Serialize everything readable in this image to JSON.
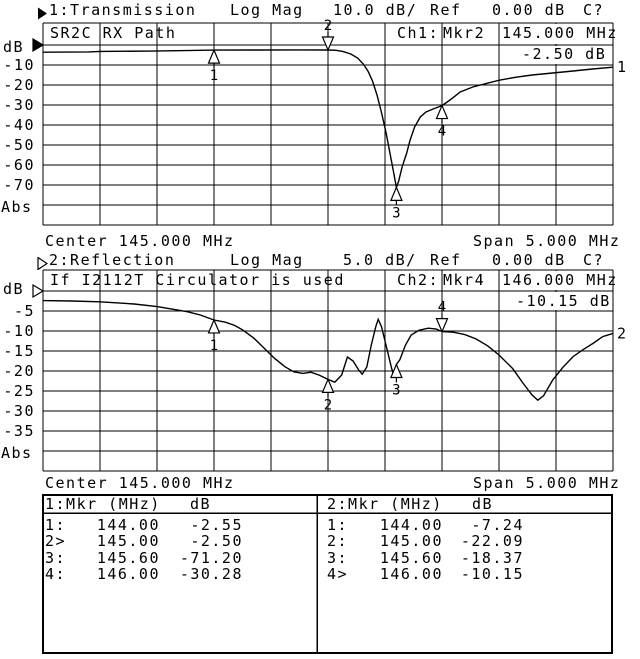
{
  "header1": {
    "trace": "1:Transmission",
    "format": "Log Mag",
    "scale": "10.0 dB/",
    "ref_label": "Ref",
    "ref_value": "0.00 dB",
    "cal": "C?"
  },
  "header2": {
    "trace": "2:Reflection",
    "format": "Log Mag",
    "scale": "5.0 dB/",
    "ref_label": "Ref",
    "ref_value": "0.00 dB",
    "cal": "C?"
  },
  "footer1": {
    "center": "Center 145.000 MHz",
    "span": "Span 5.000 MHz"
  },
  "footer2": {
    "center": "Center 145.000 MHz",
    "span": "Span 5.000 MHz"
  },
  "chart_data": [
    {
      "type": "line",
      "title": "1:Transmission",
      "annotation": "SR2C RX Path",
      "readout": {
        "channel": "Ch1:",
        "marker": "Mkr2",
        "freq": "145.000 MHz",
        "value": "-2.50 dB"
      },
      "ylabel": "dB",
      "abs_label": "Abs",
      "y_ticks": [
        "-10",
        "-20",
        "-30",
        "-40",
        "-50",
        "-60",
        "-70"
      ],
      "y_per_div": 10,
      "ylim": [
        -90,
        0
      ],
      "x_center_mhz": 145.0,
      "x_span_mhz": 5.0,
      "xlim": [
        142.5,
        147.5
      ],
      "grid": true,
      "trace_label": "1",
      "markers": [
        {
          "n": "1",
          "mhz": 144.0,
          "db": -2.55,
          "dir": "up"
        },
        {
          "n": "2",
          "mhz": 145.0,
          "db": -2.5,
          "dir": "down"
        },
        {
          "n": "3",
          "mhz": 145.6,
          "db": -71.2,
          "dir": "up"
        },
        {
          "n": "4",
          "mhz": 146.0,
          "db": -30.28,
          "dir": "up"
        }
      ],
      "points": [
        [
          142.5,
          -3.6
        ],
        [
          142.9,
          -3.45
        ],
        [
          143.0,
          -3.2
        ],
        [
          143.45,
          -3.05
        ],
        [
          143.75,
          -2.8
        ],
        [
          144.0,
          -2.55
        ],
        [
          144.35,
          -2.5
        ],
        [
          144.75,
          -2.45
        ],
        [
          145.0,
          -2.5
        ],
        [
          145.07,
          -2.65
        ],
        [
          145.13,
          -3.2
        ],
        [
          145.2,
          -4.5
        ],
        [
          145.26,
          -6.5
        ],
        [
          145.31,
          -9.5
        ],
        [
          145.35,
          -13
        ],
        [
          145.39,
          -18
        ],
        [
          145.43,
          -25
        ],
        [
          145.47,
          -34
        ],
        [
          145.51,
          -44
        ],
        [
          145.55,
          -56
        ],
        [
          145.58,
          -65
        ],
        [
          145.6,
          -71.2
        ],
        [
          145.62,
          -68
        ],
        [
          145.65,
          -61
        ],
        [
          145.69,
          -54
        ],
        [
          145.72,
          -47.5
        ],
        [
          145.76,
          -41
        ],
        [
          145.81,
          -36
        ],
        [
          145.86,
          -33.5
        ],
        [
          145.93,
          -31.8
        ],
        [
          146.0,
          -30.28
        ],
        [
          146.07,
          -27.5
        ],
        [
          146.16,
          -23.5
        ],
        [
          146.27,
          -21
        ],
        [
          146.39,
          -19.2
        ],
        [
          146.51,
          -17.5
        ],
        [
          146.65,
          -16.1
        ],
        [
          146.79,
          -15
        ],
        [
          146.97,
          -14
        ],
        [
          147.15,
          -13
        ],
        [
          147.32,
          -12
        ],
        [
          147.5,
          -11.1
        ]
      ]
    },
    {
      "type": "line",
      "title": "2:Reflection",
      "annotation": "If I2112T Circulator is used",
      "readout": {
        "channel": "Ch2:",
        "marker": "Mkr4",
        "freq": "146.000 MHz",
        "value": "-10.15 dB"
      },
      "ylabel": "dB",
      "abs_label": "Abs",
      "y_ticks": [
        "-5",
        "-10",
        "-15",
        "-20",
        "-25",
        "-30",
        "-35"
      ],
      "y_per_div": 5,
      "ylim": [
        -45,
        0
      ],
      "x_center_mhz": 145.0,
      "x_span_mhz": 5.0,
      "xlim": [
        142.5,
        147.5
      ],
      "grid": true,
      "trace_label": "2",
      "markers": [
        {
          "n": "1",
          "mhz": 144.0,
          "db": -7.24,
          "dir": "up"
        },
        {
          "n": "2",
          "mhz": 145.0,
          "db": -22.09,
          "dir": "up"
        },
        {
          "n": "3",
          "mhz": 145.6,
          "db": -18.37,
          "dir": "up"
        },
        {
          "n": "4",
          "mhz": 146.0,
          "db": -10.15,
          "dir": "down"
        }
      ],
      "points": [
        [
          142.5,
          -2.4
        ],
        [
          142.75,
          -2.5
        ],
        [
          143.0,
          -2.7
        ],
        [
          143.3,
          -3.25
        ],
        [
          143.5,
          -3.9
        ],
        [
          143.65,
          -4.6
        ],
        [
          143.77,
          -5.2
        ],
        [
          143.88,
          -6.0
        ],
        [
          144.0,
          -7.24
        ],
        [
          144.1,
          -7.8
        ],
        [
          144.18,
          -8.6
        ],
        [
          144.25,
          -9.7
        ],
        [
          144.35,
          -11.8
        ],
        [
          144.44,
          -14.3
        ],
        [
          144.53,
          -16.8
        ],
        [
          144.62,
          -18.9
        ],
        [
          144.7,
          -20.2
        ],
        [
          144.78,
          -20.6
        ],
        [
          144.85,
          -20.3
        ],
        [
          144.92,
          -21.0
        ],
        [
          145.0,
          -22.09
        ],
        [
          145.06,
          -22.8
        ],
        [
          145.12,
          -21.0
        ],
        [
          145.17,
          -16.5
        ],
        [
          145.22,
          -17.5
        ],
        [
          145.27,
          -19.8
        ],
        [
          145.3,
          -20.8
        ],
        [
          145.34,
          -19.0
        ],
        [
          145.38,
          -13.5
        ],
        [
          145.42,
          -8.8
        ],
        [
          145.44,
          -7.1
        ],
        [
          145.47,
          -9.0
        ],
        [
          145.5,
          -12.5
        ],
        [
          145.53,
          -16.0
        ],
        [
          145.56,
          -19.5
        ],
        [
          145.58,
          -21.3
        ],
        [
          145.6,
          -18.37
        ],
        [
          145.63,
          -17.2
        ],
        [
          145.68,
          -13.5
        ],
        [
          145.73,
          -11.0
        ],
        [
          145.8,
          -9.8
        ],
        [
          145.88,
          -9.3
        ],
        [
          145.95,
          -9.5
        ],
        [
          146.0,
          -10.15
        ],
        [
          146.1,
          -10.3
        ],
        [
          146.2,
          -10.9
        ],
        [
          146.3,
          -12.0
        ],
        [
          146.4,
          -13.7
        ],
        [
          146.5,
          -16.0
        ],
        [
          146.62,
          -19.4
        ],
        [
          146.71,
          -23.0
        ],
        [
          146.79,
          -26.0
        ],
        [
          146.84,
          -27.3
        ],
        [
          146.89,
          -26.2
        ],
        [
          146.97,
          -22.3
        ],
        [
          147.06,
          -19.1
        ],
        [
          147.15,
          -16.4
        ],
        [
          147.24,
          -14.6
        ],
        [
          147.33,
          -13.0
        ],
        [
          147.41,
          -11.4
        ],
        [
          147.5,
          -10.6
        ]
      ]
    }
  ],
  "table": {
    "ch1": {
      "header_mkr": "1:Mkr (MHz)",
      "header_db": "dB",
      "rows": [
        [
          "1:",
          "144.00",
          "-2.55"
        ],
        [
          "2>",
          "145.00",
          "-2.50"
        ],
        [
          "3:",
          "145.60",
          "-71.20"
        ],
        [
          "4:",
          "146.00",
          "-30.28"
        ]
      ]
    },
    "ch2": {
      "header_mkr": "2:Mkr (MHz)",
      "header_db": "dB",
      "rows": [
        [
          "1:",
          "144.00",
          "-7.24"
        ],
        [
          "2:",
          "145.00",
          "-22.09"
        ],
        [
          "3:",
          "145.60",
          "-18.37"
        ],
        [
          "4>",
          "146.00",
          "-10.15"
        ]
      ]
    }
  }
}
